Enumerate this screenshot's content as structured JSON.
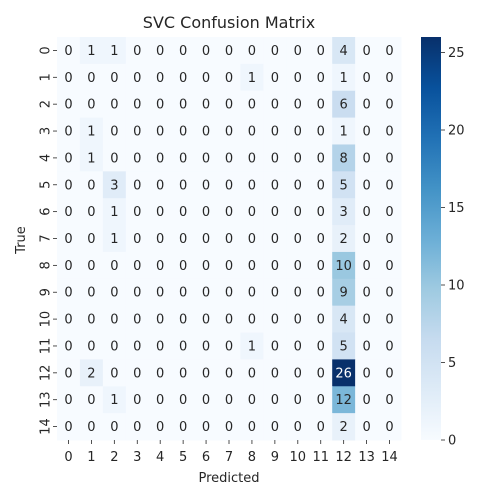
{
  "chart_data": {
    "type": "heatmap",
    "title": "SVC Confusion Matrix",
    "xlabel": "Predicted",
    "ylabel": "True",
    "x_categories": [
      "0",
      "1",
      "2",
      "3",
      "4",
      "5",
      "6",
      "7",
      "8",
      "9",
      "10",
      "11",
      "12",
      "13",
      "14"
    ],
    "y_categories": [
      "0",
      "1",
      "2",
      "3",
      "4",
      "5",
      "6",
      "7",
      "8",
      "9",
      "10",
      "11",
      "12",
      "13",
      "14"
    ],
    "values": [
      [
        0,
        1,
        1,
        0,
        0,
        0,
        0,
        0,
        0,
        0,
        0,
        0,
        4,
        0,
        0
      ],
      [
        0,
        0,
        0,
        0,
        0,
        0,
        0,
        0,
        1,
        0,
        0,
        0,
        1,
        0,
        0
      ],
      [
        0,
        0,
        0,
        0,
        0,
        0,
        0,
        0,
        0,
        0,
        0,
        0,
        6,
        0,
        0
      ],
      [
        0,
        1,
        0,
        0,
        0,
        0,
        0,
        0,
        0,
        0,
        0,
        0,
        1,
        0,
        0
      ],
      [
        0,
        1,
        0,
        0,
        0,
        0,
        0,
        0,
        0,
        0,
        0,
        0,
        8,
        0,
        0
      ],
      [
        0,
        0,
        3,
        0,
        0,
        0,
        0,
        0,
        0,
        0,
        0,
        0,
        5,
        0,
        0
      ],
      [
        0,
        0,
        1,
        0,
        0,
        0,
        0,
        0,
        0,
        0,
        0,
        0,
        3,
        0,
        0
      ],
      [
        0,
        0,
        1,
        0,
        0,
        0,
        0,
        0,
        0,
        0,
        0,
        0,
        2,
        0,
        0
      ],
      [
        0,
        0,
        0,
        0,
        0,
        0,
        0,
        0,
        0,
        0,
        0,
        0,
        10,
        0,
        0
      ],
      [
        0,
        0,
        0,
        0,
        0,
        0,
        0,
        0,
        0,
        0,
        0,
        0,
        9,
        0,
        0
      ],
      [
        0,
        0,
        0,
        0,
        0,
        0,
        0,
        0,
        0,
        0,
        0,
        0,
        4,
        0,
        0
      ],
      [
        0,
        0,
        0,
        0,
        0,
        0,
        0,
        0,
        1,
        0,
        0,
        0,
        5,
        0,
        0
      ],
      [
        0,
        2,
        0,
        0,
        0,
        0,
        0,
        0,
        0,
        0,
        0,
        0,
        26,
        0,
        0
      ],
      [
        0,
        0,
        1,
        0,
        0,
        0,
        0,
        0,
        0,
        0,
        0,
        0,
        12,
        0,
        0
      ],
      [
        0,
        0,
        0,
        0,
        0,
        0,
        0,
        0,
        0,
        0,
        0,
        0,
        2,
        0,
        0
      ]
    ],
    "colorbar": {
      "min": 0,
      "max": 26,
      "ticks": [
        0,
        5,
        10,
        15,
        20,
        25
      ]
    },
    "colormap": "Blues",
    "colors": {
      "low": "#f7fbff",
      "high": "#08306b"
    }
  }
}
